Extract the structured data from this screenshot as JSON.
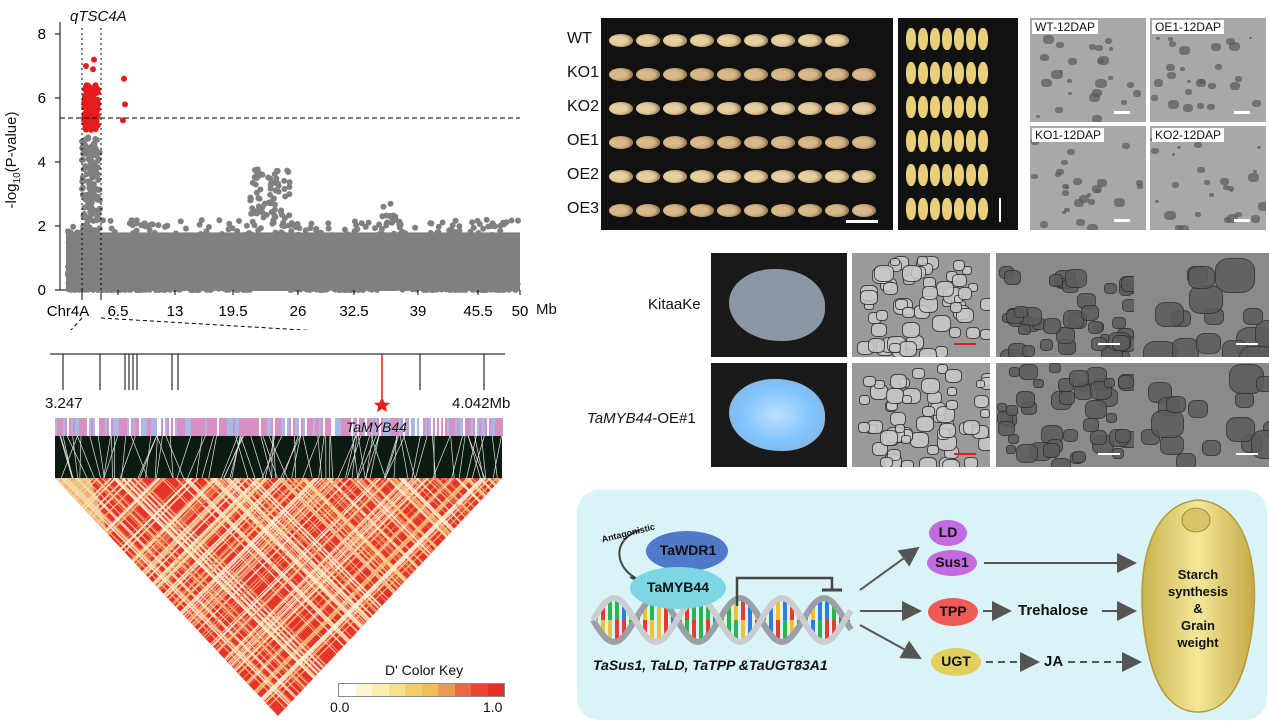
{
  "manhattan": {
    "y_axis_label_pre": "-log",
    "y_axis_label_sub": "10",
    "y_axis_label_post": "(P-value)",
    "y_ticks": [
      "0",
      "2",
      "4",
      "6",
      "8"
    ],
    "x_ticks": [
      "Chr4A",
      "6.5",
      "13",
      "19.5",
      "26",
      "32.5",
      "39",
      "45.5",
      "50"
    ],
    "x_unit": "Mb",
    "qtl_label": "qTSC4A",
    "threshold": 5
  },
  "ld_region": {
    "start_label": "3.247",
    "end_label": "4.042Mb",
    "gene_label": "TaMYB44",
    "color_key_title": "D' Color Key",
    "color_key_min": "0.0",
    "color_key_max": "1.0",
    "color_key_colors": [
      "#ffffff",
      "#fdf6d6",
      "#fbedb0",
      "#f7e08a",
      "#f2cf6a",
      "#eec056",
      "#eb9b52",
      "#ea6a3f",
      "#e74631",
      "#e4302a"
    ]
  },
  "grain_panel": {
    "rows": [
      "WT",
      "KO1",
      "KO2",
      "OE1",
      "OE2",
      "OE3"
    ]
  },
  "microscopy": {
    "labels": [
      "WT-12DAP",
      "OE1-12DAP",
      "KO1-12DAP",
      "KO2-12DAP"
    ]
  },
  "sem_panel": {
    "row1": "KitaaKe",
    "row2_italic": "TaMYB44",
    "row2_suffix": "-OE#1"
  },
  "model": {
    "antagonistic": "Antagonistic",
    "wdr1": "TaWDR1",
    "myb44": "TaMYB44",
    "genes_label": "TaSus1, TaLD, TaTPP &TaUGT83A1",
    "ld": "LD",
    "sus1": "Sus1",
    "tpp": "TPP",
    "trehalose": "Trehalose",
    "ugt": "UGT",
    "ja": "JA",
    "outcome_line1": "Starch",
    "outcome_line2": "synthesis",
    "outcome_line3": "&",
    "outcome_line4": "Grain",
    "outcome_line5": "weight"
  }
}
